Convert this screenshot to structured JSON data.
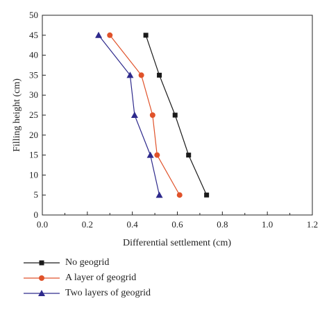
{
  "chart_data": {
    "type": "line",
    "xlabel": "Differential settlement (cm)",
    "ylabel": "Filling height (cm)",
    "xlim": [
      0.0,
      1.2
    ],
    "ylim": [
      0,
      50
    ],
    "xticks": [
      "0.0",
      "0.2",
      "0.4",
      "0.6",
      "0.8",
      "1.0",
      "1.2"
    ],
    "yticks": [
      "0",
      "5",
      "10",
      "15",
      "20",
      "25",
      "30",
      "35",
      "40",
      "45",
      "50"
    ],
    "grid": false,
    "legend_position": "bottom-left (below plot)",
    "series": [
      {
        "name": "No geogrid",
        "color": "#1a1a1a",
        "marker": "square",
        "points": [
          [
            0.73,
            5
          ],
          [
            0.65,
            15
          ],
          [
            0.59,
            25
          ],
          [
            0.52,
            35
          ],
          [
            0.46,
            45
          ]
        ]
      },
      {
        "name": "A layer of geogrid",
        "color": "#e0522a",
        "marker": "circle",
        "points": [
          [
            0.61,
            5
          ],
          [
            0.51,
            15
          ],
          [
            0.49,
            25
          ],
          [
            0.44,
            35
          ],
          [
            0.3,
            45
          ]
        ]
      },
      {
        "name": "Two layers of geogrid",
        "color": "#2e2a8c",
        "marker": "triangle",
        "points": [
          [
            0.52,
            5
          ],
          [
            0.48,
            15
          ],
          [
            0.41,
            25
          ],
          [
            0.39,
            35
          ],
          [
            0.25,
            45
          ]
        ]
      }
    ]
  }
}
